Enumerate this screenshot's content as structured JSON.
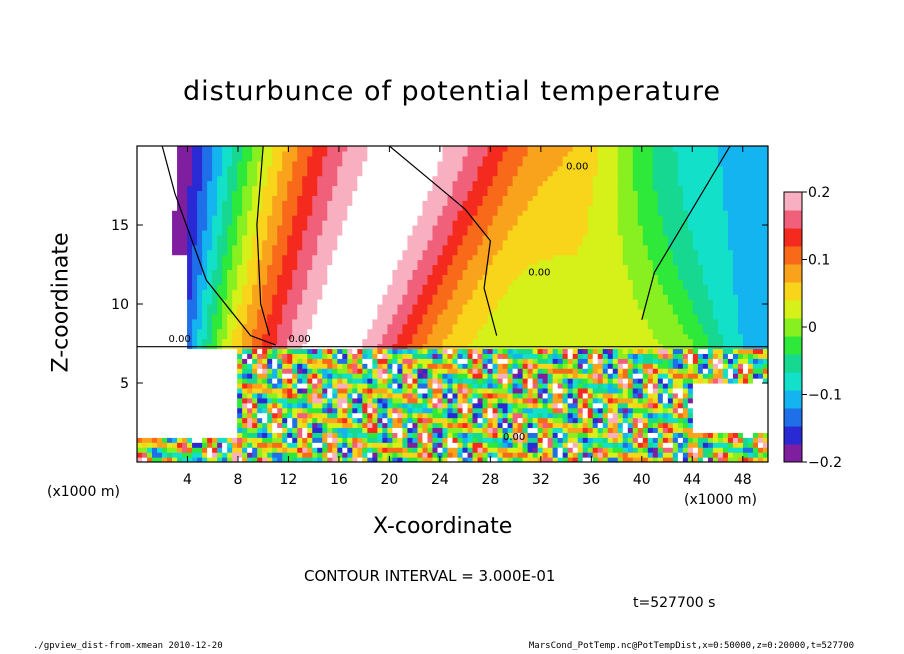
{
  "chart_data": {
    "type": "heatmap",
    "title": "disturbunce of potential temperature",
    "xlabel": "X-coordinate",
    "ylabel": "Z-coordinate",
    "x_unit": "(x1000 m)",
    "z_unit": "(x1000 m)",
    "x_ticks": [
      4,
      8,
      12,
      16,
      20,
      24,
      28,
      32,
      36,
      40,
      44,
      48
    ],
    "y_ticks": [
      5,
      10,
      15
    ],
    "xlim": [
      0,
      50
    ],
    "ylim": [
      0,
      20
    ],
    "colorbar": {
      "ticks": [
        0.2,
        0.1,
        0,
        -0.1,
        -0.2
      ],
      "tick_labels": [
        "0.2",
        "0.1",
        "0",
        "−0.1",
        "−0.2"
      ],
      "range": [
        -0.2,
        0.2
      ],
      "colors": [
        "#7f1fa0",
        "#2a2ad4",
        "#1f6fe8",
        "#14b4f0",
        "#12e0c8",
        "#16d890",
        "#2ee83a",
        "#88f020",
        "#d6f01a",
        "#f8d41a",
        "#f9a21c",
        "#f86a1a",
        "#f52a1e",
        "#f0607a",
        "#f8b0c0"
      ]
    },
    "contour_labels": [
      "0.00",
      "0.00",
      "0.00",
      "0.00",
      "0.00"
    ],
    "contour_interval": "CONTOUR INTERVAL = 3.000E-01",
    "time_label": "t=527700 s"
  },
  "footer": {
    "left": "./gpview_dist-from-xmean  2010-12-20",
    "right": "MarsCond_PotTemp.nc@PotTempDist,x=0:50000,z=0:20000,t=527700"
  }
}
